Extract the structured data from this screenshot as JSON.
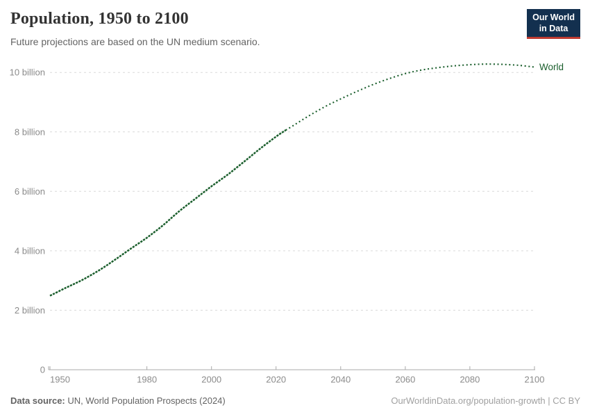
{
  "header": {
    "title": "Population, 1950 to 2100",
    "subtitle": "Future projections are based on the UN medium scenario.",
    "logo": {
      "line1": "Our World",
      "line2": "in Data",
      "bg_color": "#13304f",
      "accent_color": "#bf3b31",
      "text_color": "#ffffff"
    }
  },
  "footer": {
    "source_label": "Data source:",
    "source_value": "UN, World Population Prospects (2024)",
    "credit": "OurWorldinData.org/population-growth | CC BY"
  },
  "chart_data": {
    "type": "line",
    "title": "Population, 1950 to 2100",
    "subtitle": "Future projections are based on the UN medium scenario.",
    "unit": "billion people",
    "entity_label": "World",
    "legend_position": "end-of-line",
    "grid": true,
    "colors": {
      "line": "#1a5e2c",
      "grid": "#d9d9d9",
      "axis": "#a9a9a9",
      "tick_label": "#8b8b8b"
    },
    "x": {
      "min": 1950,
      "max": 2100,
      "ticks": [
        1950,
        1980,
        2000,
        2020,
        2040,
        2060,
        2080,
        2100
      ]
    },
    "y": {
      "min": 0,
      "max": 10.8,
      "ticks": [
        {
          "value": 0,
          "label": "0"
        },
        {
          "value": 2,
          "label": "2 billion"
        },
        {
          "value": 4,
          "label": "4 billion"
        },
        {
          "value": 6,
          "label": "6 billion"
        },
        {
          "value": 8,
          "label": "8 billion"
        },
        {
          "value": 10,
          "label": "10 billion"
        }
      ]
    },
    "series": [
      {
        "name": "World (estimates)",
        "style": "solid",
        "points": [
          [
            1950,
            2.49
          ],
          [
            1955,
            2.76
          ],
          [
            1960,
            3.02
          ],
          [
            1965,
            3.33
          ],
          [
            1970,
            3.69
          ],
          [
            1975,
            4.07
          ],
          [
            1980,
            4.44
          ],
          [
            1985,
            4.86
          ],
          [
            1990,
            5.33
          ],
          [
            1995,
            5.75
          ],
          [
            2000,
            6.17
          ],
          [
            2005,
            6.56
          ],
          [
            2010,
            6.99
          ],
          [
            2015,
            7.43
          ],
          [
            2020,
            7.84
          ],
          [
            2023,
            8.06
          ]
        ]
      },
      {
        "name": "World (UN medium projection)",
        "style": "dotted",
        "points": [
          [
            2023,
            8.06
          ],
          [
            2025,
            8.19
          ],
          [
            2030,
            8.53
          ],
          [
            2035,
            8.84
          ],
          [
            2040,
            9.11
          ],
          [
            2045,
            9.36
          ],
          [
            2050,
            9.59
          ],
          [
            2055,
            9.79
          ],
          [
            2060,
            9.96
          ],
          [
            2065,
            10.08
          ],
          [
            2070,
            10.16
          ],
          [
            2075,
            10.22
          ],
          [
            2080,
            10.26
          ],
          [
            2085,
            10.28
          ],
          [
            2090,
            10.27
          ],
          [
            2095,
            10.24
          ],
          [
            2100,
            10.18
          ]
        ]
      }
    ]
  }
}
